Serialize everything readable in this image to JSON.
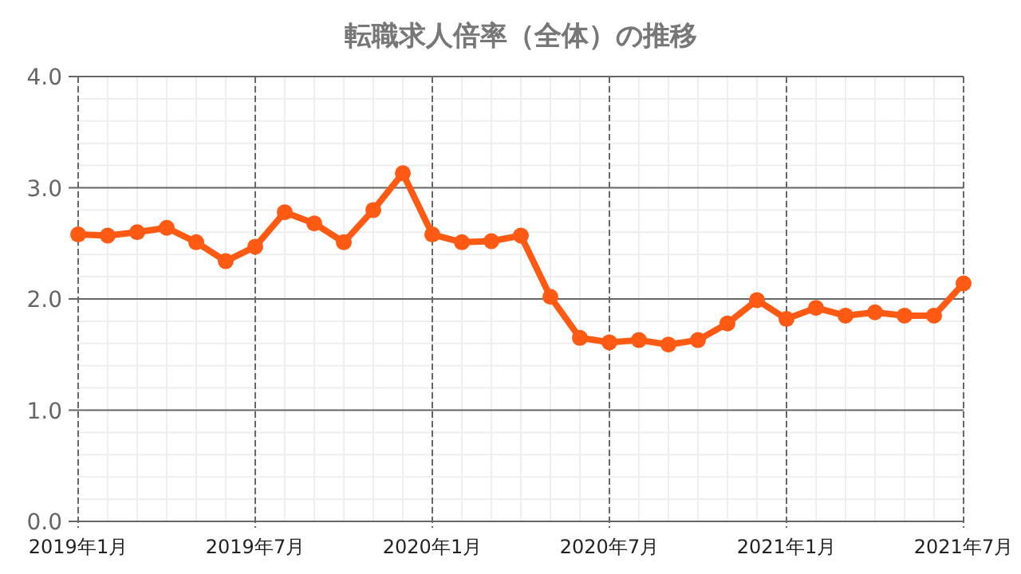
{
  "chart_data": {
    "type": "line",
    "title": "転職求人倍率（全体）の推移",
    "x": [
      "2019-01",
      "2019-02",
      "2019-03",
      "2019-04",
      "2019-05",
      "2019-06",
      "2019-07",
      "2019-08",
      "2019-09",
      "2019-10",
      "2019-11",
      "2019-12",
      "2020-01",
      "2020-02",
      "2020-03",
      "2020-04",
      "2020-05",
      "2020-06",
      "2020-07",
      "2020-08",
      "2020-09",
      "2020-10",
      "2020-11",
      "2020-12",
      "2021-01",
      "2021-02",
      "2021-03",
      "2021-04",
      "2021-05",
      "2021-06",
      "2021-07"
    ],
    "series": [
      {
        "color": "#ff5a14",
        "values": [
          2.58,
          2.57,
          2.6,
          2.64,
          2.51,
          2.34,
          2.47,
          2.78,
          2.68,
          2.51,
          2.8,
          3.13,
          2.58,
          2.51,
          2.52,
          2.57,
          2.02,
          1.65,
          1.61,
          1.63,
          1.59,
          1.63,
          1.78,
          1.99,
          1.82,
          1.92,
          1.85,
          1.88,
          1.85,
          1.85,
          2.14
        ]
      }
    ],
    "xlim": [
      "2019-01",
      "2021-07"
    ],
    "xticks": [
      {
        "value": "2019-01",
        "label": "2019年1月"
      },
      {
        "value": "2019-07",
        "label": "2019年7月"
      },
      {
        "value": "2020-01",
        "label": "2020年1月"
      },
      {
        "value": "2020-07",
        "label": "2020年7月"
      },
      {
        "value": "2021-01",
        "label": "2021年1月"
      },
      {
        "value": "2021-07",
        "label": "2021年7月"
      }
    ],
    "ylim": [
      0,
      4
    ],
    "yticks": [
      {
        "value": 0,
        "label": "0.0"
      },
      {
        "value": 1,
        "label": "1.0"
      },
      {
        "value": 2,
        "label": "2.0"
      },
      {
        "value": 3,
        "label": "3.0"
      },
      {
        "value": 4,
        "label": "4.0"
      }
    ],
    "grid": true,
    "marker": "circle",
    "line_style": "solid"
  }
}
